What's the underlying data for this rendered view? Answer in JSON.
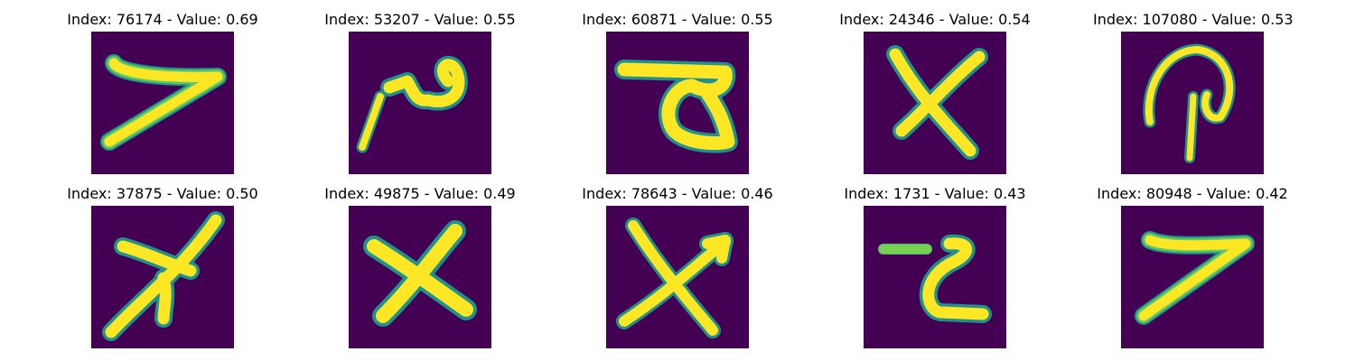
{
  "panels": [
    {
      "index": "76174",
      "value": "0.69",
      "title": "Index: 76174 - Value: 0.69",
      "glyph": "seven-stroke"
    },
    {
      "index": "53207",
      "value": "0.55",
      "title": "Index: 53207 - Value: 0.55",
      "glyph": "loop-stroke"
    },
    {
      "index": "60871",
      "value": "0.55",
      "title": "Index: 60871 - Value: 0.55",
      "glyph": "triangle-stroke"
    },
    {
      "index": "24346",
      "value": "0.54",
      "title": "Index: 24346 - Value: 0.54",
      "glyph": "x-stroke"
    },
    {
      "index": "107080",
      "value": "0.53",
      "title": "Index: 107080 - Value: 0.53",
      "glyph": "p-stroke"
    },
    {
      "index": "37875",
      "value": "0.50",
      "title": "Index: 37875 - Value: 0.50",
      "glyph": "arrow-stroke"
    },
    {
      "index": "49875",
      "value": "0.49",
      "title": "Index: 49875 - Value: 0.49",
      "glyph": "x-stroke"
    },
    {
      "index": "78643",
      "value": "0.46",
      "title": "Index: 78643 - Value: 0.46",
      "glyph": "x-arrow-stroke"
    },
    {
      "index": "1731",
      "value": "0.43",
      "title": "Index: 1731 - Value: 0.43",
      "glyph": "z-stroke"
    },
    {
      "index": "80948",
      "value": "0.42",
      "title": "Index: 80948 - Value: 0.42",
      "glyph": "seven-stroke"
    }
  ],
  "colors": {
    "background": "#440154",
    "stroke": "#fde725",
    "edge": "#21918c",
    "edge2": "#5ec962"
  }
}
